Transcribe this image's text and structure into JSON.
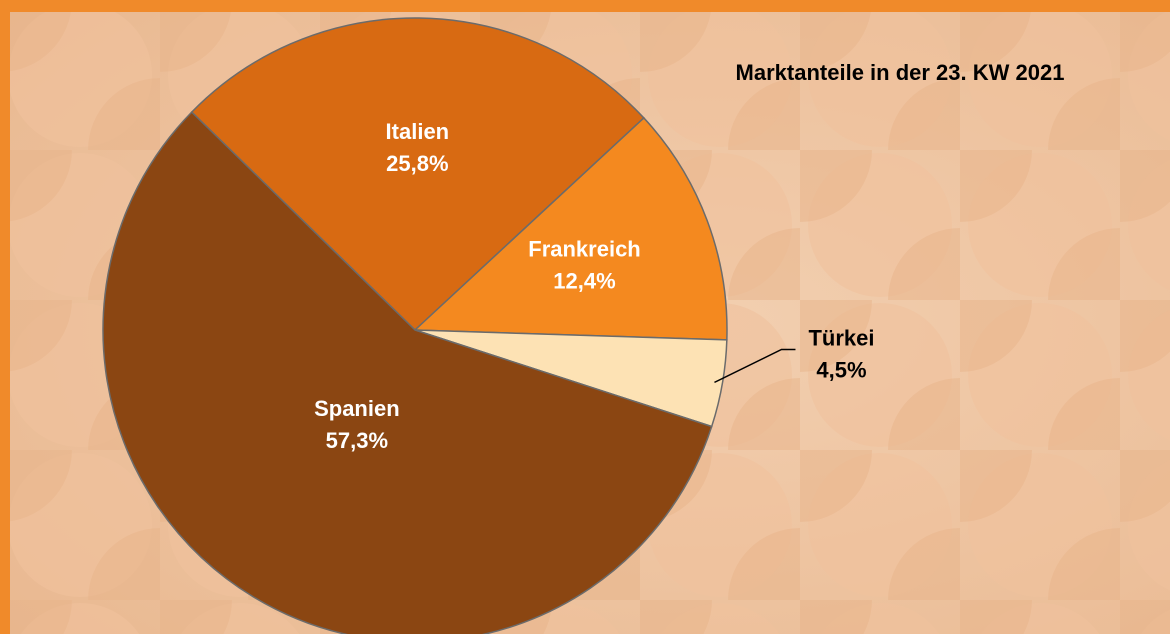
{
  "chart_data": {
    "type": "pie",
    "title": "Marktanteile in der 23. KW 2021",
    "categories": [
      "Italien",
      "Frankreich",
      "Türkei",
      "Spanien"
    ],
    "values": [
      25.8,
      12.4,
      4.5,
      57.3
    ],
    "value_labels": [
      "25,8%",
      "12,4%",
      "4,5%",
      "57,3%"
    ],
    "colors": [
      "#d86a12",
      "#f4891f",
      "#fde2b4",
      "#8b4612"
    ]
  }
}
